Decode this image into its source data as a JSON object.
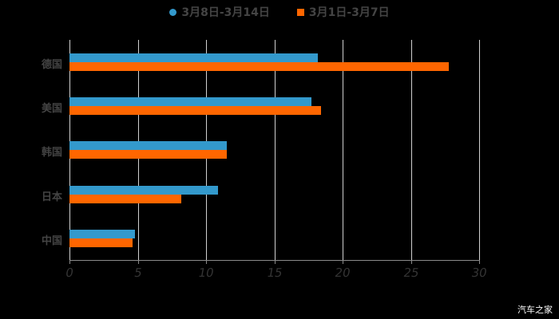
{
  "chart_data": {
    "type": "bar",
    "orientation": "horizontal",
    "title": "",
    "xlabel": "",
    "ylabel": "",
    "xlim": [
      0,
      30
    ],
    "xticks": [
      "0",
      "5",
      "10",
      "15",
      "20",
      "25",
      "30"
    ],
    "categories": [
      "德国",
      "美国",
      "韩国",
      "日本",
      "中国"
    ],
    "series": [
      {
        "name": "3月8日-3月14日",
        "color": "#3399CC",
        "values": [
          18.2,
          17.7,
          11.5,
          10.9,
          4.8
        ]
      },
      {
        "name": "3月1日-3月7日",
        "color": "#FF6600",
        "values": [
          27.8,
          18.4,
          11.5,
          8.2,
          4.6
        ]
      }
    ],
    "grid": true,
    "legend_position": "top"
  },
  "legend": [
    {
      "label": "3月8日-3月14日",
      "color": "#3399CC",
      "marker": "circle"
    },
    {
      "label": "3月1日-3月7日",
      "color": "#FF6600",
      "marker": "square"
    }
  ],
  "watermark": "汽车之家"
}
